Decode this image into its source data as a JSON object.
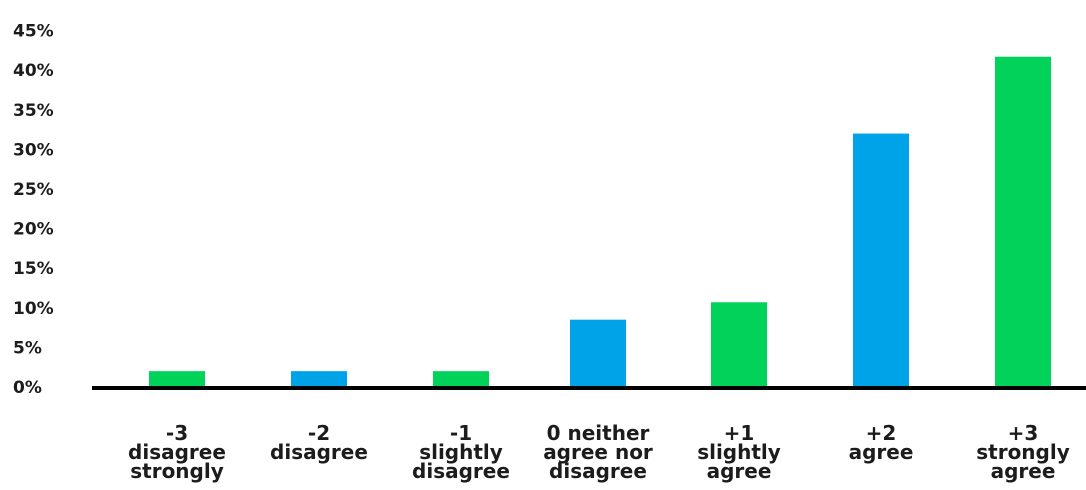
{
  "chart_data": {
    "type": "bar",
    "title": "",
    "xlabel": "",
    "ylabel": "",
    "ylim": [
      0,
      45
    ],
    "yticks": [
      "0%",
      "5%",
      "10%",
      "15%",
      "20%",
      "25%",
      "30%",
      "35%",
      "40%",
      "45%"
    ],
    "categories": [
      [
        "-3",
        "disagree",
        "strongly"
      ],
      [
        "-2",
        "disagree"
      ],
      [
        "-1",
        "slightly",
        "disagree"
      ],
      [
        "0 neither",
        "agree nor",
        "disagree"
      ],
      [
        "+1",
        "slightly",
        "agree"
      ],
      [
        "+2",
        "agree"
      ],
      [
        "+3",
        "strongly",
        "agree"
      ]
    ],
    "values": [
      2,
      2,
      2,
      8.5,
      10.7,
      32,
      41.7
    ],
    "colors": [
      "#00d25a",
      "#00a2e8",
      "#00d25a",
      "#00a2e8",
      "#00d25a",
      "#00a2e8",
      "#00d25a"
    ],
    "grid": false,
    "legend": "none"
  }
}
